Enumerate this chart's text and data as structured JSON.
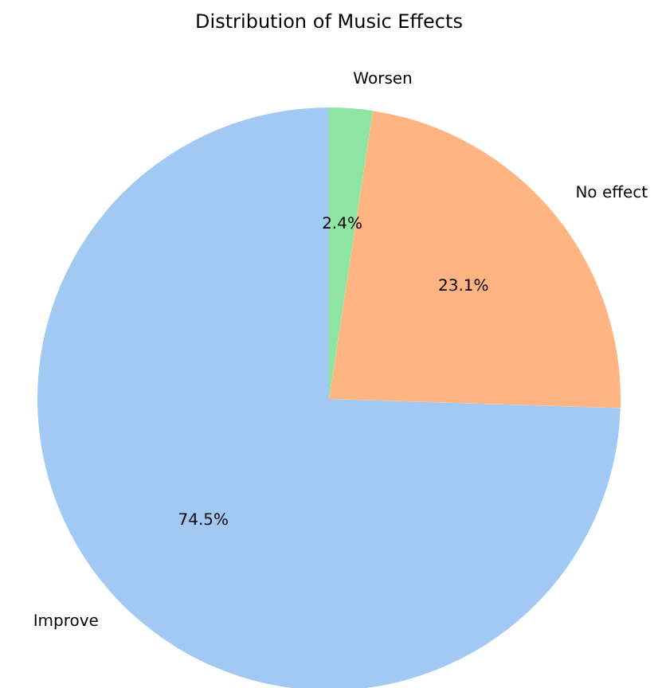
{
  "chart_data": {
    "type": "pie",
    "title": "Distribution of Music Effects",
    "categories": [
      "Improve",
      "No effect",
      "Worsen"
    ],
    "values": [
      74.5,
      23.1,
      2.4
    ],
    "colors": [
      "#a1c9f4",
      "#ffb482",
      "#8de5a1"
    ],
    "value_labels": [
      "74.5%",
      "23.1%",
      "2.4%"
    ],
    "legend": false
  }
}
